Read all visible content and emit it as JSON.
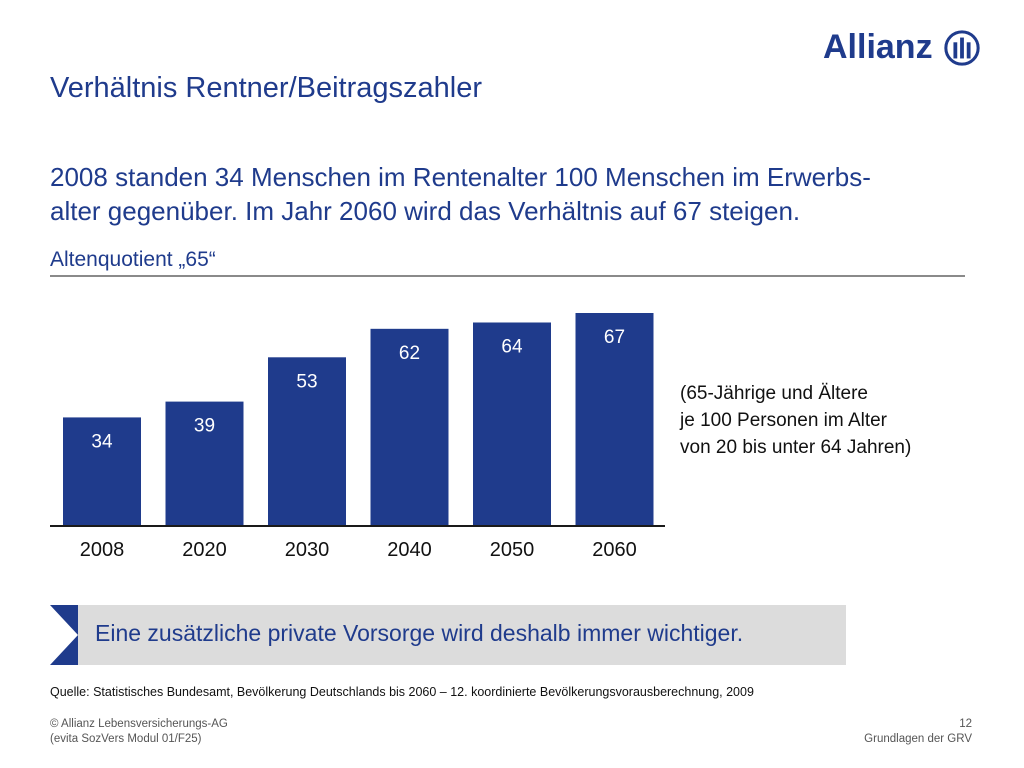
{
  "logo": {
    "text": "Allianz",
    "icon": "allianz-logo-icon",
    "color": "#1f3b8c"
  },
  "title": "Verhältnis Rentner/Beitragszahler",
  "subtitle_line1": "2008 standen 34 Menschen im Rentenalter 100 Menschen im Erwerbs-",
  "subtitle_line2": "alter gegenüber. Im Jahr 2060 wird das Verhältnis auf 67 steigen.",
  "chart_heading": "Altenquotient „65“",
  "note": {
    "line1": "(65-Jährige und Ältere",
    "line2": "je 100 Personen im Alter",
    "line3": "von 20 bis unter 64 Jahren)"
  },
  "chart_data": {
    "type": "bar",
    "title": "Altenquotient „65“",
    "categories": [
      "2008",
      "2020",
      "2030",
      "2040",
      "2050",
      "2060"
    ],
    "values": [
      34,
      39,
      53,
      62,
      64,
      67
    ],
    "data_labels": [
      "34",
      "39",
      "53",
      "62",
      "64",
      "67"
    ],
    "ylim": [
      0,
      67
    ],
    "grid": false,
    "bar_color": "#1f3b8c",
    "label_color": "#ffffff"
  },
  "banner": {
    "text": "Eine zusätzliche private Vorsorge wird deshalb immer wichtiger.",
    "icon": "chevron-right-icon"
  },
  "source": "Quelle: Statistisches Bundesamt, Bevölkerung Deutschlands bis 2060 – 12. koordinierte Bevölkerungsvorausberechnung, 2009",
  "footer": {
    "left_line1": "© Allianz Lebensversicherungs-AG",
    "left_line2": "(evita SozVers Modul 01/F25)",
    "page_number": "12",
    "section": "Grundlagen der GRV"
  },
  "colors": {
    "brand": "#1f3b8c",
    "banner_bg": "#dcdcdc",
    "rule": "#8a8a8a"
  }
}
